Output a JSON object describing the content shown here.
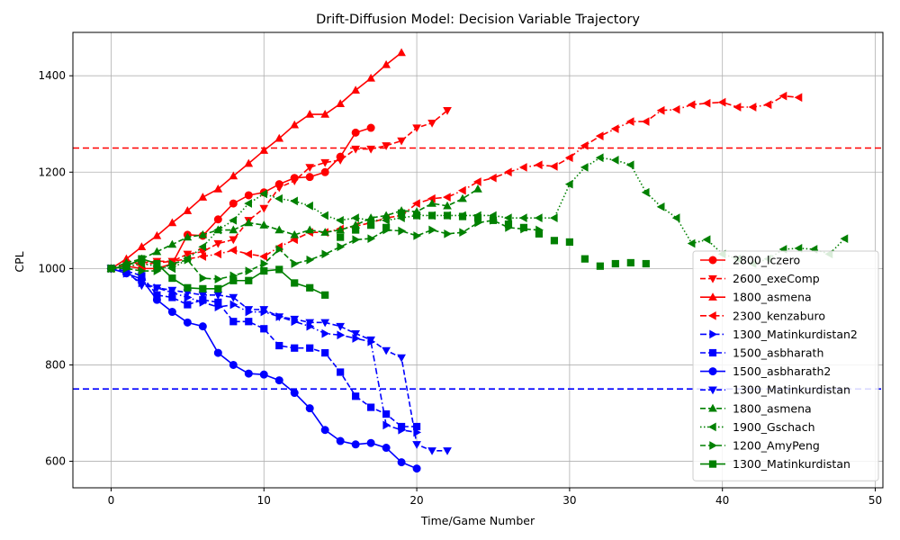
{
  "chart_data": {
    "type": "line",
    "title": "Drift-Diffusion Model: Decision Variable Trajectory",
    "xlabel": "Time/Game Number",
    "ylabel": "CPL",
    "xlim": [
      -2.5,
      50.5
    ],
    "ylim": [
      545,
      1490
    ],
    "xticks": [
      0,
      10,
      20,
      30,
      40,
      50
    ],
    "yticks": [
      600,
      800,
      1000,
      1200,
      1400
    ],
    "grid": true,
    "legend_position": "lower-right",
    "hlines": [
      {
        "y": 1250,
        "color": "#ff0000",
        "style": "dashed"
      },
      {
        "y": 750,
        "color": "#0000ff",
        "style": "dashed"
      }
    ],
    "series": [
      {
        "name": "2800_lczero",
        "color": "#ff0000",
        "line": "solid",
        "marker": "circle",
        "y": [
          1000,
          1005,
          1000,
          1000,
          1010,
          1070,
          1068,
          1102,
          1135,
          1152,
          1158,
          1175,
          1188,
          1190,
          1200,
          1232,
          1282,
          1292
        ]
      },
      {
        "name": "2600_exeComp",
        "color": "#ff0000",
        "line": "dashed",
        "marker": "triangle-down",
        "y": [
          1000,
          1010,
          1012,
          1015,
          1015,
          1030,
          1035,
          1052,
          1060,
          1100,
          1125,
          1168,
          1182,
          1210,
          1220,
          1225,
          1248,
          1248,
          1255,
          1265,
          1292,
          1302,
          1328
        ]
      },
      {
        "name": "1800_asmena",
        "color": "#ff0000",
        "line": "solid",
        "marker": "triangle-up",
        "y": [
          1000,
          1020,
          1045,
          1068,
          1095,
          1120,
          1148,
          1165,
          1192,
          1218,
          1245,
          1270,
          1298,
          1320,
          1320,
          1342,
          1370,
          1395,
          1423,
          1448
        ]
      },
      {
        "name": "2300_kenzaburo",
        "color": "#ff0000",
        "line": "dashdot",
        "marker": "triangle-left",
        "y": [
          1000,
          1005,
          1008,
          1012,
          1015,
          1020,
          1025,
          1030,
          1038,
          1030,
          1025,
          1045,
          1060,
          1075,
          1075,
          1082,
          1088,
          1095,
          1105,
          1110,
          1135,
          1145,
          1148,
          1162,
          1180,
          1188,
          1200,
          1210,
          1215,
          1212,
          1230,
          1255,
          1275,
          1290,
          1305,
          1305,
          1328,
          1330,
          1340,
          1343,
          1345,
          1335,
          1335,
          1340,
          1358,
          1355
        ]
      },
      {
        "name": "1300_Matinkurdistan2",
        "color": "#0000ff",
        "line": "dashdot",
        "marker": "triangle-right",
        "y": [
          1000,
          990,
          970,
          960,
          950,
          940,
          930,
          920,
          925,
          910,
          910,
          900,
          890,
          880,
          865,
          862,
          855,
          848,
          675,
          665,
          660
        ]
      },
      {
        "name": "1500_asbharath",
        "color": "#0000ff",
        "line": "dashed",
        "marker": "square",
        "y": [
          1000,
          995,
          985,
          945,
          940,
          925,
          935,
          930,
          890,
          890,
          875,
          840,
          835,
          835,
          825,
          785,
          735,
          712,
          698,
          672,
          672
        ]
      },
      {
        "name": "1500_asbharath2",
        "color": "#0000ff",
        "line": "solid",
        "marker": "circle",
        "y": [
          1000,
          990,
          978,
          935,
          910,
          888,
          880,
          825,
          800,
          782,
          780,
          768,
          742,
          710,
          665,
          642,
          635,
          638,
          628,
          598,
          585
        ]
      },
      {
        "name": "1300_Matinkurdistan",
        "color": "#0000ff",
        "line": "dashed",
        "marker": "triangle-down",
        "y": [
          1000,
          995,
          965,
          960,
          955,
          950,
          945,
          945,
          940,
          915,
          915,
          900,
          895,
          888,
          888,
          880,
          865,
          852,
          830,
          815,
          635,
          622,
          622
        ]
      },
      {
        "name": "1800_asmena",
        "color": "#008000",
        "line": "dashed",
        "marker": "triangle-up",
        "y": [
          1000,
          1012,
          1020,
          1035,
          1050,
          1065,
          1070,
          1080,
          1080,
          1095,
          1090,
          1080,
          1070,
          1080,
          1075,
          1080,
          1090,
          1105,
          1110,
          1120,
          1118,
          1135,
          1130,
          1145,
          1165
        ]
      },
      {
        "name": "1900_Gschach",
        "color": "#008000",
        "line": "dotted",
        "marker": "triangle-left",
        "y": [
          1000,
          1005,
          1010,
          1005,
          1000,
          1020,
          1045,
          1080,
          1100,
          1135,
          1155,
          1145,
          1140,
          1130,
          1110,
          1100,
          1105,
          1100,
          1100,
          1105,
          1110,
          1110,
          1110,
          1110,
          1110,
          1110,
          1105,
          1105,
          1105,
          1105,
          1175,
          1210,
          1230,
          1225,
          1215,
          1158,
          1128,
          1105,
          1052,
          1060,
          1030,
          1020,
          1010,
          1020,
          1040,
          1042,
          1040,
          1030,
          1062
        ]
      },
      {
        "name": "1200_AmyPeng",
        "color": "#008000",
        "line": "dashed",
        "marker": "triangle-right",
        "y": [
          1000,
          1000,
          995,
          995,
          1010,
          1018,
          980,
          978,
          985,
          995,
          1010,
          1040,
          1010,
          1018,
          1030,
          1045,
          1060,
          1062,
          1080,
          1078,
          1068,
          1080,
          1072,
          1075,
          1095,
          1100,
          1085,
          1082,
          1080
        ]
      },
      {
        "name": "1300_Matinkurdistan",
        "color": "#008000",
        "line": "solid",
        "marker": "square",
        "y": [
          1000,
          1005,
          1020,
          1010,
          980,
          960,
          958,
          958,
          975,
          975,
          995,
          998,
          970,
          960,
          945,
          null,
          null,
          null,
          null,
          null,
          null,
          null,
          null,
          null,
          null,
          null,
          null,
          null,
          null,
          null,
          null,
          null,
          null,
          null,
          null,
          null
        ]
      },
      {
        "name": "1300_Matinkurdistan",
        "color": "#008000",
        "line": "none",
        "marker": "square",
        "hidden_in_legend": true,
        "y": [
          null,
          null,
          null,
          null,
          null,
          null,
          null,
          null,
          null,
          null,
          null,
          null,
          null,
          null,
          null,
          1065,
          1080,
          1090,
          1085,
          1115,
          1110,
          1110,
          1110,
          1108,
          1105,
          1100,
          1092,
          1085,
          1072,
          1058,
          1055,
          1020,
          1005,
          1010,
          1012,
          1010
        ]
      }
    ]
  }
}
